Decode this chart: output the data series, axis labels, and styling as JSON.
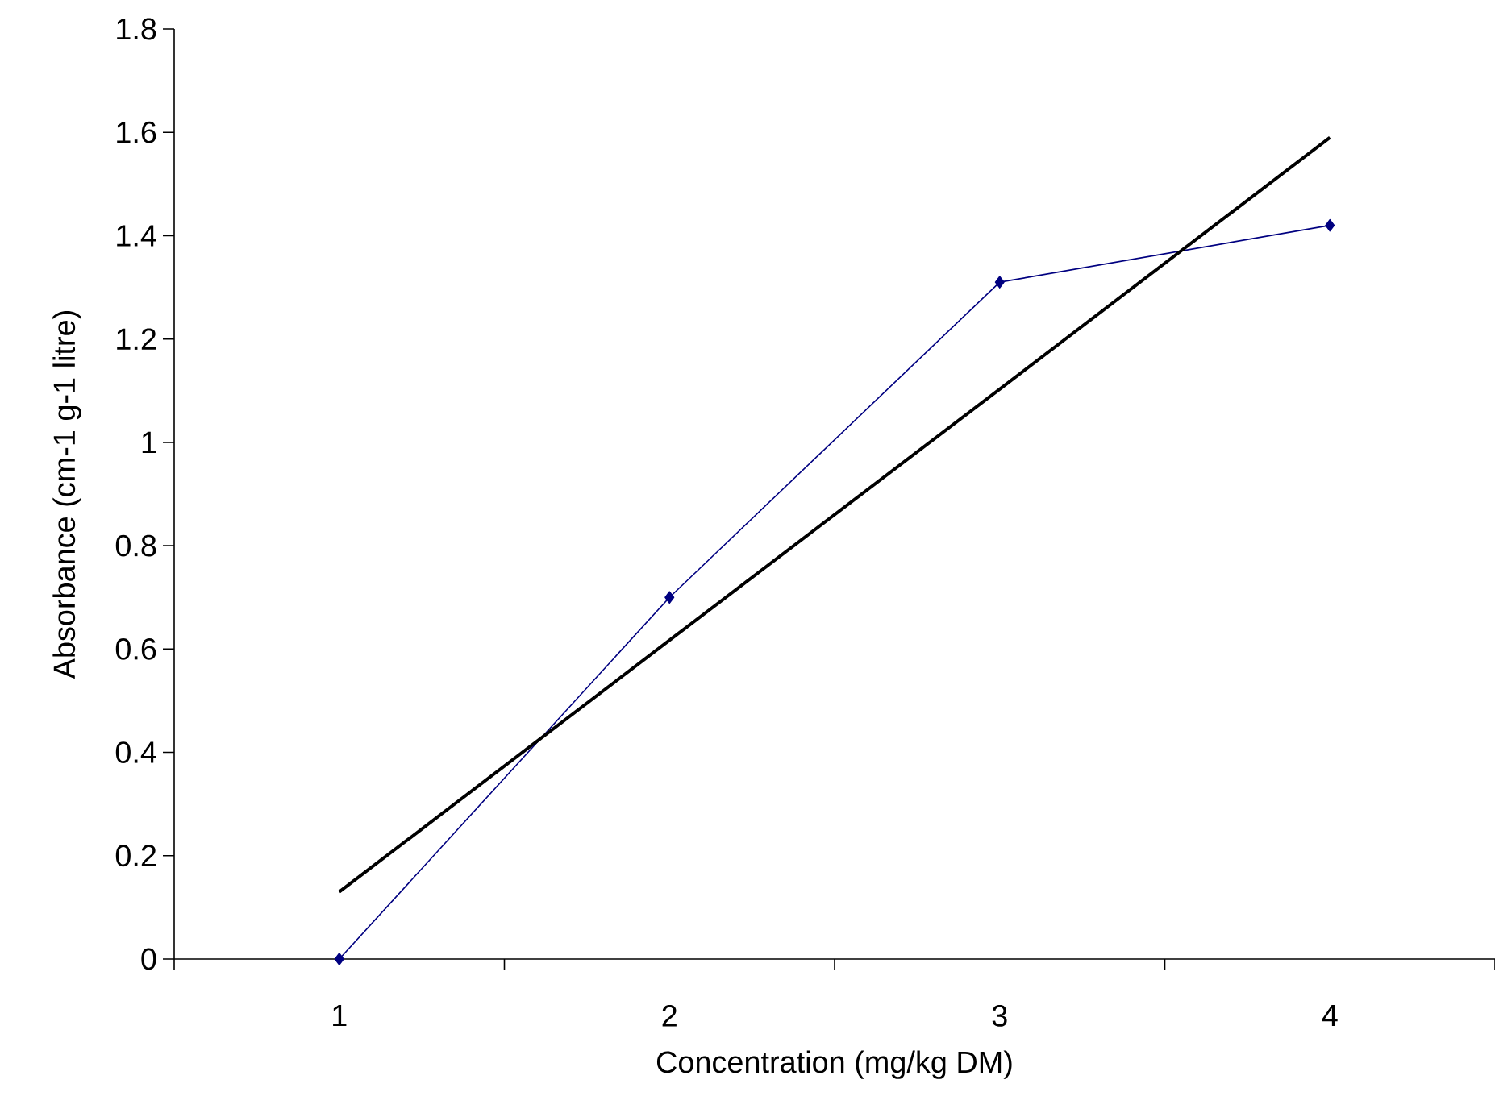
{
  "chart_data": {
    "type": "line",
    "xlabel": "Concentration (mg/kg  DM)",
    "ylabel": "Absorbance (cm-1 g-1 litre)",
    "categories": [
      "1",
      "2",
      "3",
      "4"
    ],
    "series": [
      {
        "color": "#000080",
        "marker": "diamond",
        "values": [
          0,
          0.7,
          1.31,
          1.42
        ]
      },
      {
        "type": "line",
        "color": "#000000",
        "values": [
          0.13,
          0.617,
          1.103,
          1.59
        ]
      }
    ],
    "ylim": [
      0,
      1.8
    ],
    "yticks": [
      0,
      0.2,
      0.4,
      0.6,
      0.8,
      1,
      1.2,
      1.4,
      1.6,
      1.8
    ]
  }
}
